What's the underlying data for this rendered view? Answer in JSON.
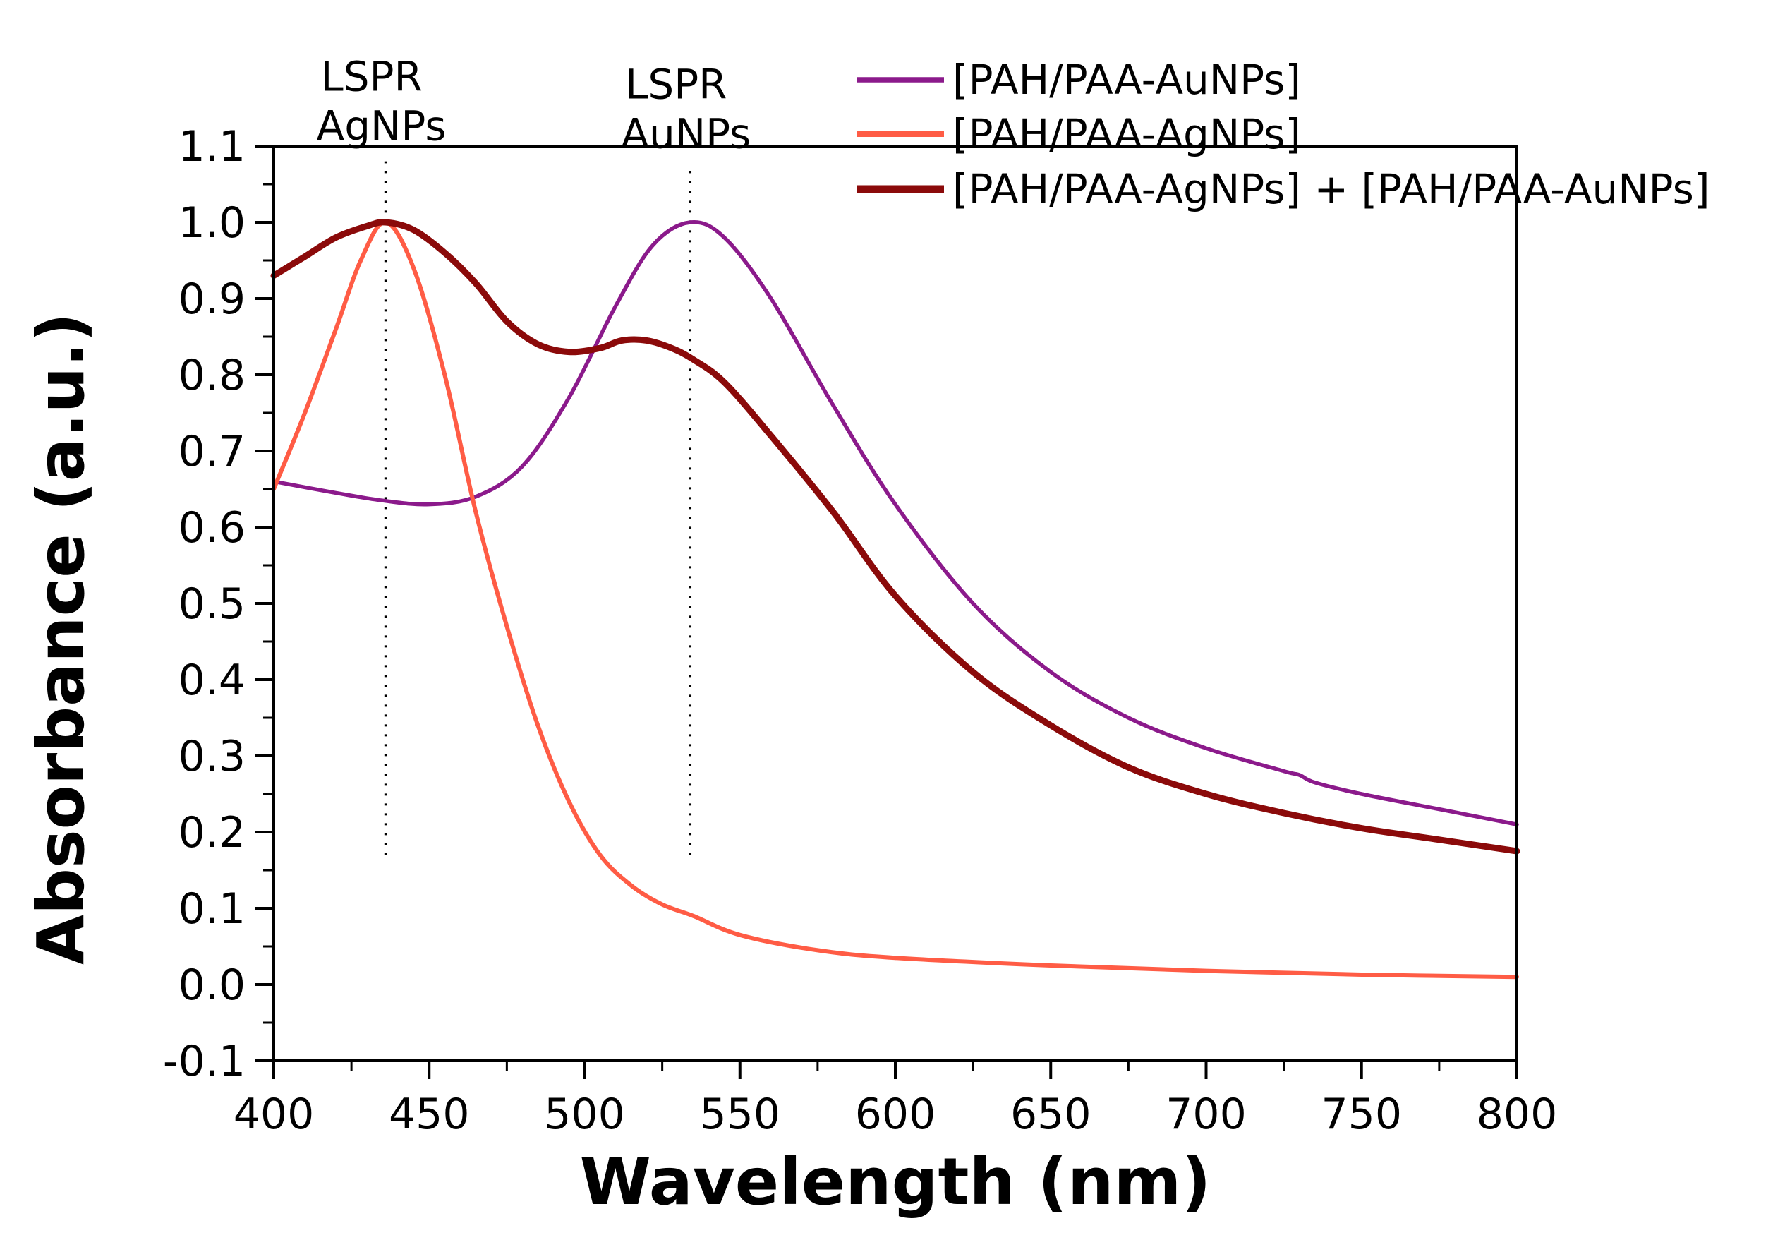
{
  "chart_data": {
    "type": "line",
    "title": "",
    "xlabel": "Wavelength (nm)",
    "ylabel": "Absorbance (a.u.)",
    "xlim": [
      400,
      800
    ],
    "ylim": [
      -0.1,
      1.1
    ],
    "x_ticks": [
      "400",
      "450",
      "500",
      "550",
      "600",
      "650",
      "700",
      "750",
      "800"
    ],
    "y_ticks": [
      "-0.1",
      "0.0",
      "0.1",
      "0.2",
      "0.3",
      "0.4",
      "0.5",
      "0.6",
      "0.7",
      "0.8",
      "0.9",
      "1.0",
      "1.1"
    ],
    "grid": false,
    "legend_position": "top-right",
    "annotations": [
      {
        "id": "ag",
        "line1": "LSPR",
        "line2": "AgNPs",
        "x": 436,
        "y_from": 0.17,
        "y_to": 1.08
      },
      {
        "id": "au",
        "line1": "LSPR",
        "line2": "AuNPs",
        "x": 534,
        "y_from": 0.17,
        "y_to": 1.07
      }
    ],
    "series": [
      {
        "name": "[PAH/PAA-AuNPs]",
        "color": "#8b1a8b",
        "x": [
          400,
          420,
          435,
          450,
          465,
          480,
          495,
          510,
          522,
          534,
          545,
          560,
          580,
          600,
          625,
          650,
          675,
          700,
          725,
          730,
          735,
          750,
          775,
          800
        ],
        "y": [
          0.66,
          0.645,
          0.635,
          0.63,
          0.64,
          0.68,
          0.77,
          0.89,
          0.97,
          1.0,
          0.98,
          0.9,
          0.76,
          0.63,
          0.5,
          0.41,
          0.35,
          0.31,
          0.28,
          0.275,
          0.265,
          0.25,
          0.23,
          0.21
        ]
      },
      {
        "name": "[PAH/PAA-AgNPs]",
        "color": "#ff5c45",
        "x": [
          400,
          410,
          420,
          428,
          436,
          445,
          455,
          465,
          475,
          485,
          495,
          505,
          515,
          525,
          535,
          550,
          575,
          600,
          650,
          700,
          750,
          800
        ],
        "y": [
          0.65,
          0.75,
          0.86,
          0.95,
          1.0,
          0.94,
          0.8,
          0.62,
          0.47,
          0.34,
          0.24,
          0.17,
          0.13,
          0.105,
          0.09,
          0.065,
          0.045,
          0.035,
          0.025,
          0.018,
          0.013,
          0.01
        ]
      },
      {
        "name": "[PAH/PAA-AgNPs] + [PAH/PAA-AuNPs]",
        "color": "#8b0a0a",
        "x": [
          400,
          410,
          420,
          430,
          436,
          445,
          455,
          465,
          475,
          485,
          495,
          505,
          512,
          520,
          528,
          535,
          545,
          560,
          580,
          600,
          625,
          650,
          675,
          700,
          725,
          750,
          775,
          800
        ],
        "y": [
          0.93,
          0.955,
          0.98,
          0.995,
          1.0,
          0.99,
          0.96,
          0.92,
          0.87,
          0.84,
          0.83,
          0.835,
          0.845,
          0.845,
          0.835,
          0.82,
          0.79,
          0.72,
          0.62,
          0.51,
          0.41,
          0.34,
          0.285,
          0.25,
          0.225,
          0.205,
          0.19,
          0.175
        ]
      }
    ]
  }
}
